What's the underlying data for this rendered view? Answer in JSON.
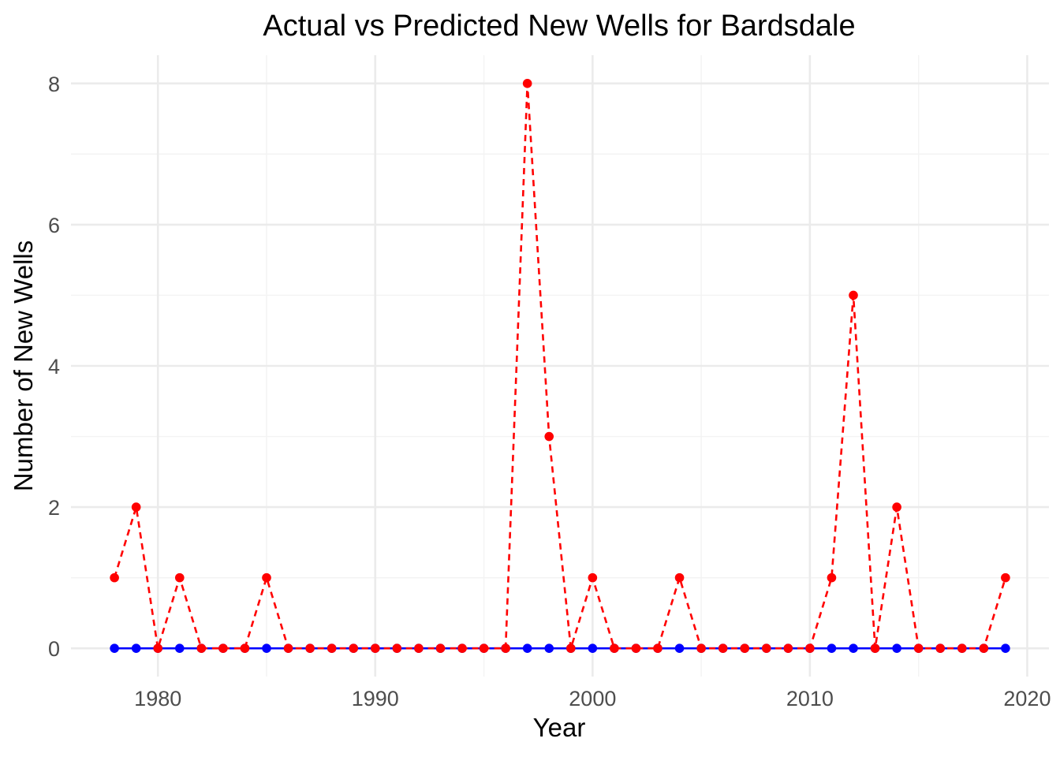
{
  "chart_data": {
    "type": "line",
    "title": "Actual vs Predicted New Wells for Bardsdale",
    "xlabel": "Year",
    "ylabel": "Number of New Wells",
    "xlim": [
      1976,
      2021
    ],
    "ylim": [
      -0.4,
      8.4
    ],
    "x_ticks": [
      1980,
      1990,
      2000,
      2010,
      2020
    ],
    "y_ticks": [
      0,
      2,
      4,
      6,
      8
    ],
    "x_minor_ticks": [
      1975,
      1985,
      1995,
      2005,
      2015
    ],
    "y_minor_ticks": [
      1,
      3,
      5,
      7
    ],
    "grid": true,
    "legend": "none",
    "x": [
      1978,
      1979,
      1980,
      1981,
      1982,
      1983,
      1984,
      1985,
      1986,
      1987,
      1988,
      1989,
      1990,
      1991,
      1992,
      1993,
      1994,
      1995,
      1996,
      1997,
      1998,
      1999,
      2000,
      2001,
      2002,
      2003,
      2004,
      2005,
      2006,
      2007,
      2008,
      2009,
      2010,
      2011,
      2012,
      2013,
      2014,
      2015,
      2016,
      2017,
      2018,
      2019
    ],
    "series": [
      {
        "color": "#0000ff",
        "line_style": "solid",
        "values": [
          0,
          0,
          0,
          0,
          0,
          0,
          0,
          0,
          0,
          0,
          0,
          0,
          0,
          0,
          0,
          0,
          0,
          0,
          0,
          0,
          0,
          0,
          0,
          0,
          0,
          0,
          0,
          0,
          0,
          0,
          0,
          0,
          0,
          0,
          0,
          0,
          0,
          0,
          0,
          0,
          0,
          0
        ]
      },
      {
        "color": "#ff0000",
        "line_style": "dashed",
        "values": [
          1,
          2,
          0,
          1,
          0,
          0,
          0,
          1,
          0,
          0,
          0,
          0,
          0,
          0,
          0,
          0,
          0,
          0,
          0,
          8,
          3,
          0,
          1,
          0,
          0,
          0,
          1,
          0,
          0,
          0,
          0,
          0,
          0,
          1,
          5,
          0,
          2,
          0,
          0,
          0,
          0,
          1
        ]
      }
    ]
  }
}
